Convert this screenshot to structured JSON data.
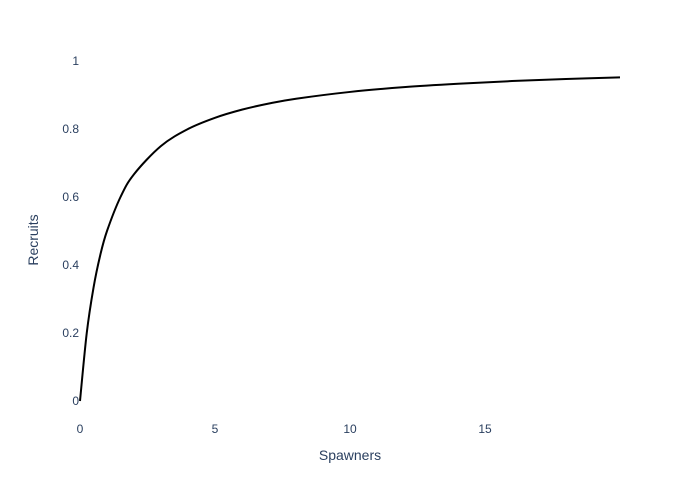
{
  "chart_data": {
    "type": "line",
    "title": "",
    "xlabel": "Spawners",
    "ylabel": "Recruits",
    "xlim": [
      0,
      20
    ],
    "ylim": [
      0,
      1
    ],
    "x_ticks": [
      0,
      5,
      10,
      15
    ],
    "x_tick_labels": [
      "0",
      "5",
      "10",
      "15"
    ],
    "y_ticks": [
      0,
      0.2,
      0.4,
      0.6,
      0.8,
      1
    ],
    "y_tick_labels": [
      "0",
      "0.2",
      "0.4",
      "0.6",
      "0.8",
      "1"
    ],
    "grid": false,
    "legend": false,
    "line_color": "#000000",
    "text_color": "#2a3f5f",
    "series": [
      {
        "x": [
          0,
          0.25,
          0.5,
          0.75,
          1,
          1.5,
          2,
          3,
          4,
          5,
          6,
          7,
          8,
          10,
          12,
          14,
          16,
          18,
          20
        ],
        "values": [
          0,
          0.2,
          0.333,
          0.429,
          0.5,
          0.6,
          0.667,
          0.75,
          0.8,
          0.833,
          0.857,
          0.875,
          0.889,
          0.909,
          0.923,
          0.933,
          0.941,
          0.947,
          0.952
        ]
      }
    ]
  }
}
